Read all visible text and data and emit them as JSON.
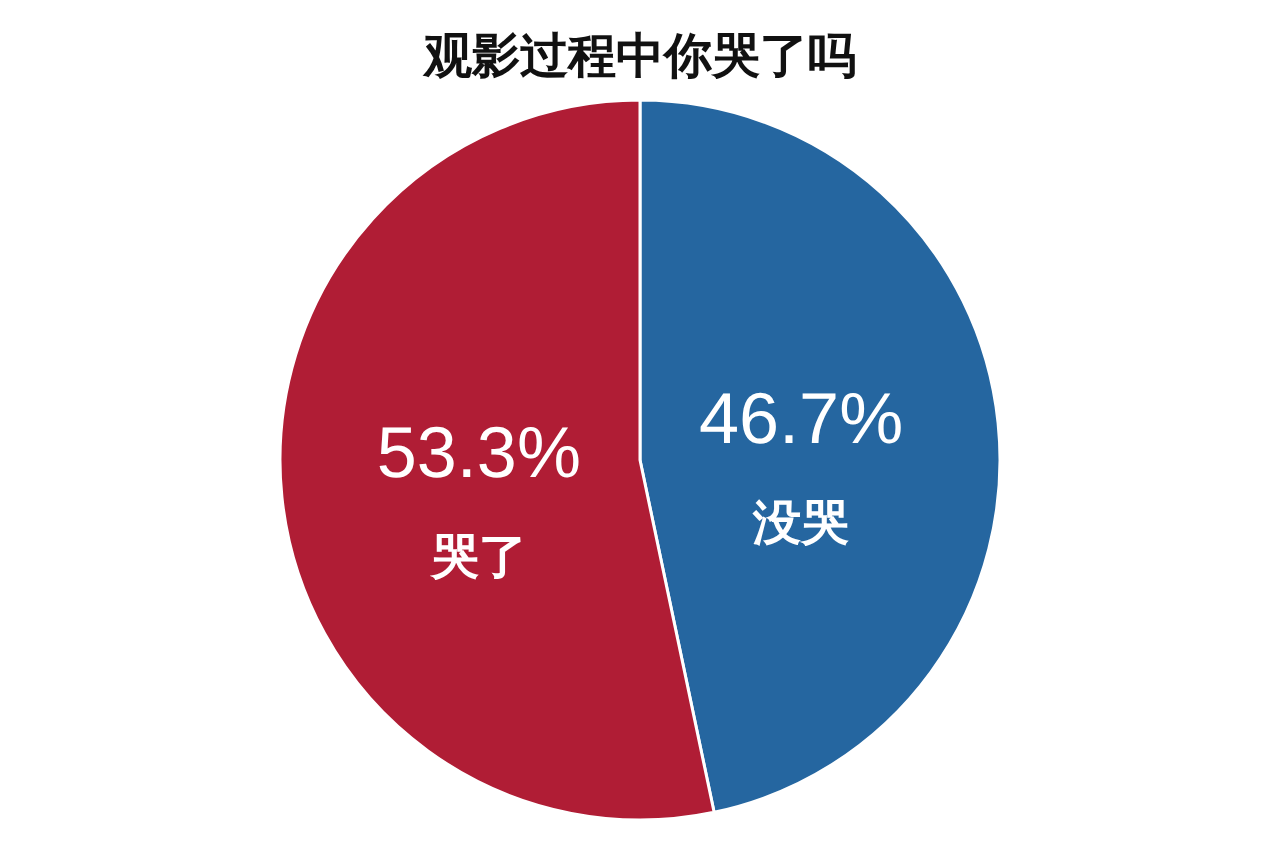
{
  "chart_data": {
    "type": "pie",
    "title": "观影过程中你哭了吗",
    "categories": [
      "没哭",
      "哭了"
    ],
    "values": [
      46.7,
      53.3
    ],
    "value_labels": [
      "46.7%",
      "53.3%"
    ],
    "colors": [
      "#2566a0",
      "#b01d35"
    ]
  }
}
